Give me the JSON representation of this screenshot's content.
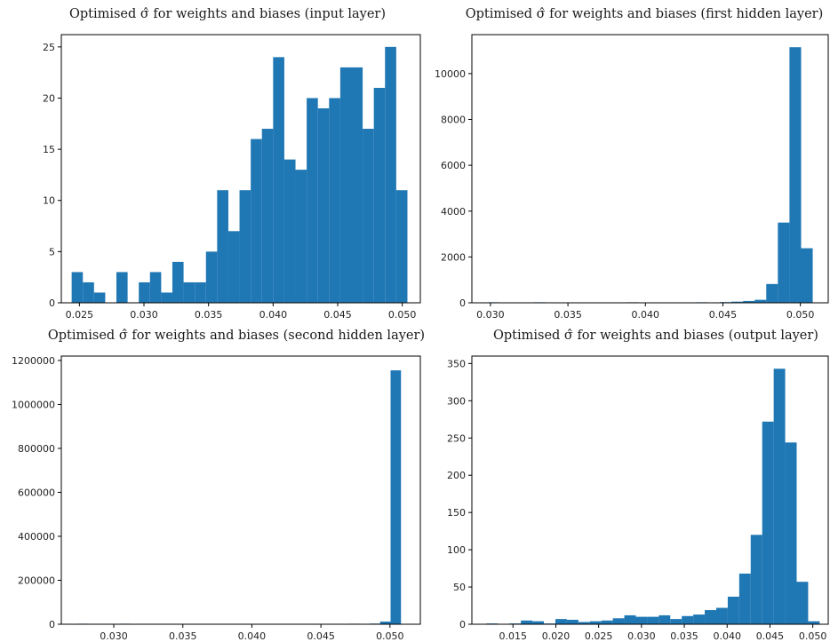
{
  "chart_data": [
    {
      "type": "bar",
      "title": "Optimised σ̂ for weights and biases (input layer)",
      "xlabel": "",
      "ylabel": "",
      "xlim": [
        0.0236,
        0.0514
      ],
      "ylim": [
        0,
        26.2
      ],
      "xticks": [
        0.025,
        0.03,
        0.035,
        0.04,
        0.045,
        0.05
      ],
      "xtick_labels": [
        "0.025",
        "0.030",
        "0.035",
        "0.040",
        "0.045",
        "0.050"
      ],
      "yticks": [
        0,
        5,
        10,
        15,
        20,
        25
      ],
      "ytick_labels": [
        "0",
        "5",
        "10",
        "15",
        "20",
        "25"
      ],
      "bin_start": 0.0244,
      "bin_end": 0.0504,
      "values": [
        3,
        2,
        1,
        0,
        3,
        0,
        2,
        3,
        1,
        4,
        2,
        2,
        5,
        11,
        7,
        11,
        16,
        17,
        24,
        14,
        13,
        20,
        19,
        20,
        23,
        23,
        17,
        21,
        25,
        11
      ]
    },
    {
      "type": "bar",
      "title": "Optimised σ̂ for weights and biases (first hidden layer)",
      "xlabel": "",
      "ylabel": "",
      "xlim": [
        0.0288,
        0.0518
      ],
      "ylim": [
        0,
        11700
      ],
      "xticks": [
        0.03,
        0.035,
        0.04,
        0.045,
        0.05
      ],
      "xtick_labels": [
        "0.030",
        "0.035",
        "0.040",
        "0.045",
        "0.050"
      ],
      "yticks": [
        0,
        2000,
        4000,
        6000,
        8000,
        10000
      ],
      "ytick_labels": [
        "0",
        "2000",
        "4000",
        "6000",
        "8000",
        "10000"
      ],
      "bin_start": 0.0298,
      "bin_end": 0.0508,
      "values": [
        8,
        0,
        0,
        0,
        3,
        0,
        0,
        0,
        0,
        0,
        0,
        0,
        5,
        0,
        0,
        0,
        0,
        0,
        20,
        0,
        30,
        50,
        80,
        130,
        820,
        3500,
        11150,
        2380
      ]
    },
    {
      "type": "bar",
      "title": "Optimised σ̂ for weights and biases (second hidden layer)",
      "xlabel": "",
      "ylabel": "",
      "xlim": [
        0.0262,
        0.0522
      ],
      "ylim": [
        0,
        1220000
      ],
      "xticks": [
        0.03,
        0.035,
        0.04,
        0.045,
        0.05
      ],
      "xtick_labels": [
        "0.030",
        "0.035",
        "0.040",
        "0.045",
        "0.050"
      ],
      "yticks": [
        0,
        200000,
        400000,
        600000,
        800000,
        1000000,
        1200000
      ],
      "ytick_labels": [
        "0",
        "200000",
        "400000",
        "600000",
        "800000",
        "1000000",
        "1200000"
      ],
      "bin_start": 0.0274,
      "bin_end": 0.0508,
      "values": [
        80,
        0,
        0,
        0,
        50,
        0,
        0,
        0,
        0,
        0,
        0,
        0,
        0,
        0,
        0,
        0,
        0,
        0,
        0,
        0,
        0,
        0,
        0,
        0,
        0,
        0,
        100,
        0,
        3000,
        12000,
        1155000
      ]
    },
    {
      "type": "bar",
      "title": "Optimised σ̂ for weights and biases (output layer)",
      "xlabel": "",
      "ylabel": "",
      "xlim": [
        0.0102,
        0.0518
      ],
      "ylim": [
        0,
        360
      ],
      "xticks": [
        0.015,
        0.02,
        0.025,
        0.03,
        0.035,
        0.04,
        0.045,
        0.05
      ],
      "xtick_labels": [
        "0.015",
        "0.020",
        "0.025",
        "0.030",
        "0.035",
        "0.040",
        "0.045",
        "0.050"
      ],
      "yticks": [
        0,
        50,
        100,
        150,
        200,
        250,
        300,
        350
      ],
      "ytick_labels": [
        "0",
        "50",
        "100",
        "150",
        "200",
        "250",
        "300",
        "350"
      ],
      "bin_start": 0.0119,
      "bin_end": 0.0508,
      "values": [
        1,
        0,
        1,
        5,
        4,
        1,
        7,
        6,
        3,
        4,
        5,
        8,
        12,
        10,
        10,
        12,
        7,
        11,
        13,
        19,
        22,
        37,
        68,
        120,
        272,
        343,
        244,
        57,
        4
      ]
    }
  ]
}
